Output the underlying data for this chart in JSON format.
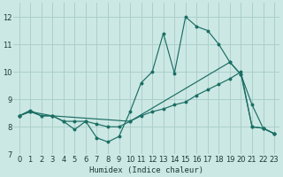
{
  "xlabel": "Humidex (Indice chaleur)",
  "background_color": "#cce8e4",
  "grid_color": "#aacfcb",
  "line_color": "#1a6e64",
  "xlim": [
    -0.5,
    23.5
  ],
  "ylim": [
    7.0,
    12.5
  ],
  "xticks": [
    0,
    1,
    2,
    3,
    4,
    5,
    6,
    7,
    8,
    9,
    10,
    11,
    12,
    13,
    14,
    15,
    16,
    17,
    18,
    19,
    20,
    21,
    22,
    23
  ],
  "yticks": [
    7,
    8,
    9,
    10,
    11,
    12
  ],
  "line1_x": [
    0,
    1,
    2,
    3,
    4,
    5,
    6,
    7,
    8,
    9,
    10,
    11,
    12,
    13,
    14,
    15,
    16,
    17,
    18,
    19,
    20,
    21,
    22,
    23
  ],
  "line1_y": [
    8.4,
    8.6,
    8.4,
    8.4,
    8.2,
    7.9,
    8.2,
    7.6,
    7.45,
    7.65,
    8.55,
    9.6,
    10.0,
    11.4,
    9.95,
    12.0,
    11.65,
    11.5,
    11.0,
    10.35,
    9.9,
    8.8,
    7.95,
    7.75
  ],
  "line2_x": [
    0,
    1,
    2,
    3,
    4,
    5,
    6,
    7,
    8,
    9,
    10,
    11,
    12,
    13,
    14,
    15,
    16,
    17,
    18,
    19,
    20,
    21,
    22,
    23
  ],
  "line2_y": [
    8.4,
    8.55,
    8.4,
    8.4,
    8.2,
    8.2,
    8.2,
    8.1,
    8.0,
    8.0,
    8.2,
    8.4,
    8.55,
    8.65,
    8.8,
    8.9,
    9.15,
    9.35,
    9.55,
    9.75,
    10.0,
    8.0,
    7.95,
    7.75
  ],
  "line3_x": [
    0,
    1,
    3,
    10,
    19,
    20,
    21,
    22,
    23
  ],
  "line3_y": [
    8.4,
    8.55,
    8.4,
    8.2,
    10.35,
    9.9,
    8.0,
    7.95,
    7.75
  ]
}
